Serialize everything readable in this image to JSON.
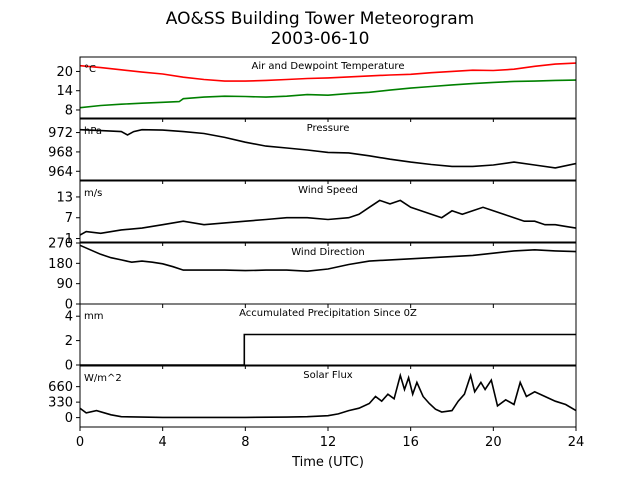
{
  "title": "AO&SS Building Tower Meteorogram",
  "date": "2003-06-10",
  "xlabel": "Time (UTC)",
  "chart_data": [
    {
      "type": "line",
      "title": "Air and Dewpoint Temperature",
      "unit": "°C",
      "xlim": [
        0,
        24
      ],
      "xticks": [
        0,
        4,
        8,
        12,
        16,
        20,
        24
      ],
      "ylim": [
        5.5,
        24.5
      ],
      "yticks": [
        8,
        14,
        20
      ],
      "series": [
        {
          "color": "#ff0000",
          "x": [
            0,
            1,
            2,
            3,
            4,
            5,
            6,
            7,
            8,
            9,
            10,
            11,
            12,
            13,
            14,
            15,
            16,
            17,
            18,
            19,
            20,
            21,
            22,
            23,
            24
          ],
          "y": [
            21.8,
            21.2,
            20.5,
            19.8,
            19.2,
            18.2,
            17.5,
            17.0,
            17.0,
            17.2,
            17.5,
            17.8,
            18.0,
            18.3,
            18.6,
            18.9,
            19.1,
            19.6,
            20.0,
            20.4,
            20.3,
            20.7,
            21.6,
            22.3,
            22.6
          ]
        },
        {
          "color": "#008000",
          "x": [
            0,
            1,
            2,
            3,
            4,
            4.8,
            5,
            6,
            7,
            8,
            9,
            10,
            11,
            12,
            13,
            14,
            15,
            16,
            17,
            18,
            19,
            20,
            21,
            22,
            23,
            24
          ],
          "y": [
            8.7,
            9.4,
            9.8,
            10.1,
            10.4,
            10.6,
            11.5,
            12.0,
            12.3,
            12.2,
            12.0,
            12.3,
            12.8,
            12.6,
            13.1,
            13.5,
            14.2,
            14.8,
            15.3,
            15.8,
            16.2,
            16.6,
            16.9,
            17.0,
            17.2,
            17.3
          ]
        }
      ]
    },
    {
      "type": "line",
      "title": "Pressure",
      "unit": "hPa",
      "xlim": [
        0,
        24
      ],
      "ylim": [
        962.2,
        974.8
      ],
      "yticks": [
        964,
        968,
        972
      ],
      "series": [
        {
          "color": "#000000",
          "x": [
            0,
            1,
            2,
            2.3,
            2.6,
            3,
            4,
            5,
            6,
            7,
            8,
            9,
            10,
            11,
            12,
            13,
            14,
            15,
            16,
            17,
            18,
            19,
            20,
            21,
            22,
            23,
            24
          ],
          "y": [
            972.6,
            972.4,
            972.2,
            971.5,
            972.2,
            972.6,
            972.5,
            972.2,
            971.8,
            971.0,
            970.0,
            969.2,
            968.8,
            968.4,
            967.9,
            967.8,
            967.2,
            966.5,
            965.9,
            965.4,
            965.0,
            965.0,
            965.3,
            965.9,
            965.3,
            964.7,
            965.6
          ]
        }
      ]
    },
    {
      "type": "line",
      "title": "Wind Speed",
      "unit": "m/s",
      "xlim": [
        0,
        24
      ],
      "ylim": [
        0,
        17.6
      ],
      "yticks": [
        1,
        7,
        13
      ],
      "series": [
        {
          "color": "#000000",
          "x": [
            0,
            0.3,
            1,
            2,
            3,
            4,
            5,
            6,
            7,
            8,
            9,
            10,
            11,
            12,
            13,
            13.5,
            14,
            14.5,
            15,
            15.5,
            16,
            16.5,
            17,
            17.5,
            18,
            18.5,
            19,
            19.5,
            20,
            20.5,
            21,
            21.5,
            22,
            22.5,
            23,
            23.5,
            24
          ],
          "y": [
            2,
            3,
            2.5,
            3.5,
            4,
            5,
            6,
            5,
            5.5,
            6,
            6.5,
            7,
            7,
            6.5,
            7,
            8,
            10,
            12,
            11,
            12,
            10,
            9,
            8,
            7,
            9,
            8,
            9,
            10,
            9,
            8,
            7,
            6,
            6,
            5,
            5,
            4.5,
            4
          ]
        }
      ]
    },
    {
      "type": "line",
      "title": "Wind Direction",
      "unit": "",
      "xlim": [
        0,
        24
      ],
      "ylim": [
        0,
        270
      ],
      "yticks": [
        0,
        90,
        180,
        270
      ],
      "series": [
        {
          "color": "#000000",
          "x": [
            0,
            0.5,
            1,
            1.5,
            2,
            2.5,
            3,
            3.5,
            4,
            4.5,
            5,
            6,
            7,
            8,
            9,
            10,
            11,
            12,
            13,
            14,
            15,
            16,
            17,
            18,
            19,
            20,
            21,
            22,
            23,
            24
          ],
          "y": [
            260,
            240,
            220,
            205,
            195,
            185,
            190,
            185,
            178,
            165,
            150,
            150,
            150,
            148,
            150,
            150,
            145,
            155,
            175,
            190,
            195,
            200,
            205,
            210,
            215,
            225,
            235,
            240,
            235,
            232
          ]
        }
      ]
    },
    {
      "type": "line",
      "title": "Accumulated Precipitation Since 0Z",
      "unit": "mm",
      "xlim": [
        0,
        24
      ],
      "ylim": [
        0,
        5
      ],
      "yticks": [
        0,
        2,
        4
      ],
      "series": [
        {
          "color": "#000000",
          "x": [
            0,
            7.95,
            7.95,
            24
          ],
          "y": [
            0,
            0,
            2.5,
            2.5
          ]
        }
      ]
    },
    {
      "type": "line",
      "title": "Solar Flux",
      "unit": "W/m^2",
      "xlim": [
        0,
        24
      ],
      "ylim": [
        -200,
        1100
      ],
      "yticks": [
        0,
        330,
        660
      ],
      "series": [
        {
          "color": "#000000",
          "x": [
            0,
            0.3,
            0.8,
            1.5,
            2,
            3,
            4,
            6,
            8,
            10,
            11,
            12,
            12.5,
            13,
            13.5,
            14,
            14.3,
            14.6,
            14.9,
            15.2,
            15.5,
            15.7,
            15.9,
            16.1,
            16.3,
            16.6,
            16.9,
            17.2,
            17.5,
            18,
            18.3,
            18.6,
            18.9,
            19.1,
            19.4,
            19.6,
            19.9,
            20.2,
            20.6,
            21,
            21.3,
            21.6,
            22,
            22.5,
            23,
            23.5,
            24
          ],
          "y": [
            200,
            100,
            150,
            60,
            20,
            10,
            5,
            5,
            5,
            10,
            20,
            40,
            80,
            150,
            200,
            300,
            450,
            350,
            500,
            400,
            900,
            600,
            850,
            500,
            750,
            450,
            300,
            180,
            120,
            150,
            350,
            500,
            900,
            550,
            750,
            600,
            800,
            250,
            380,
            280,
            750,
            450,
            550,
            450,
            350,
            280,
            150
          ]
        }
      ]
    }
  ]
}
